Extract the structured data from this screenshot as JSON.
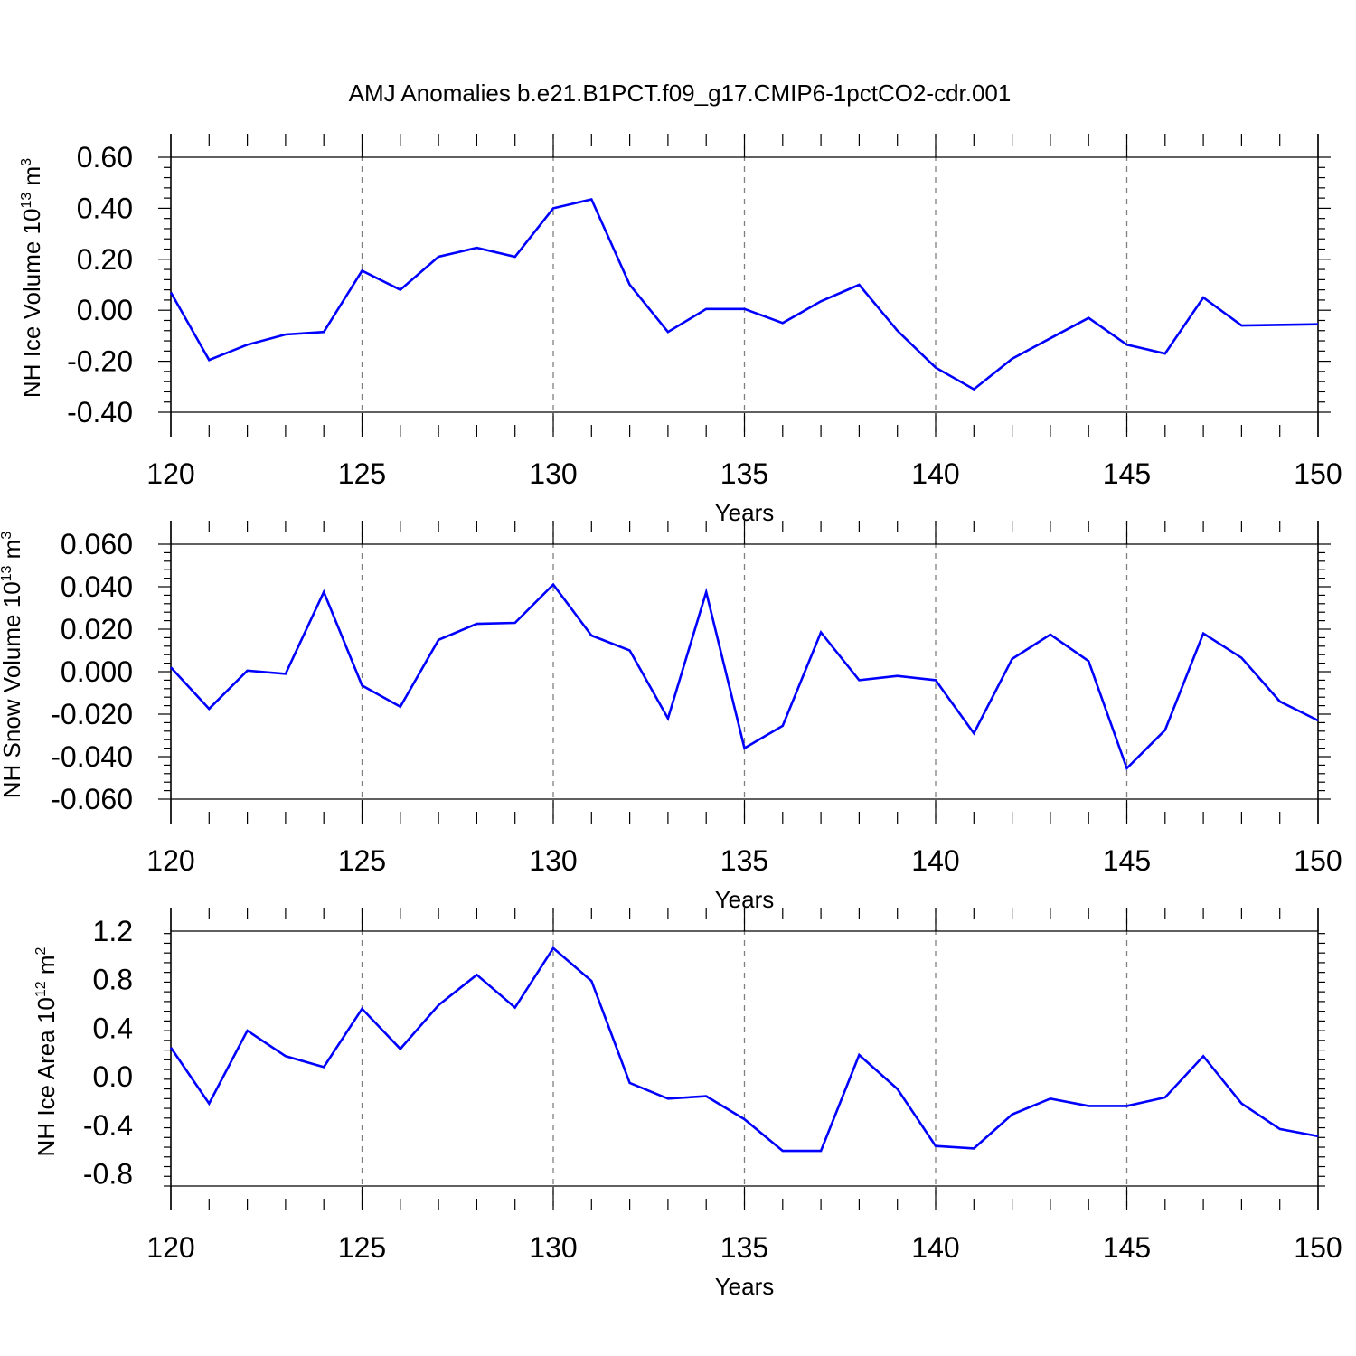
{
  "title": "AMJ Anomalies b.e21.B1PCT.f09_g17.CMIP6-1pctCO2-cdr.001",
  "colors": {
    "series": "#0000ff",
    "grid": "#808080",
    "axis": "#000000"
  },
  "chart_data": [
    {
      "type": "line",
      "ylabel": {
        "main": "NH Ice Volume 10",
        "sup": "13",
        "tail": " m",
        "sup2": "3"
      },
      "xlabel": "Years",
      "xlim": [
        120,
        150
      ],
      "ylim": [
        -0.4,
        0.6
      ],
      "xticks": [
        120,
        125,
        130,
        135,
        140,
        145,
        150
      ],
      "xtick_labels": [
        "120",
        "125",
        "130",
        "135",
        "140",
        "145",
        "150"
      ],
      "yticks": [
        -0.4,
        -0.2,
        0.0,
        0.2,
        0.4,
        0.6
      ],
      "ytick_labels": [
        "-0.40",
        "-0.20",
        "0.00",
        "0.20",
        "0.40",
        "0.60"
      ],
      "grid_x": [
        125,
        130,
        135,
        140,
        145
      ],
      "x": [
        120,
        121,
        122,
        123,
        124,
        125,
        126,
        127,
        128,
        129,
        130,
        131,
        132,
        133,
        134,
        135,
        136,
        137,
        138,
        139,
        140,
        141,
        142,
        143,
        144,
        145,
        146,
        147,
        148,
        150
      ],
      "values": [
        0.07,
        -0.195,
        -0.135,
        -0.095,
        -0.085,
        0.155,
        0.08,
        0.21,
        0.245,
        0.21,
        0.4,
        0.435,
        0.1,
        -0.085,
        0.005,
        0.005,
        -0.05,
        0.035,
        0.1,
        -0.08,
        -0.225,
        -0.31,
        -0.19,
        -0.11,
        -0.03,
        -0.135,
        -0.17,
        0.05,
        -0.06,
        -0.055
      ]
    },
    {
      "type": "line",
      "ylabel": {
        "main": "NH Snow Volume 10",
        "sup": "13",
        "tail": " m",
        "sup2": "3"
      },
      "xlabel": "Years",
      "xlim": [
        120,
        150
      ],
      "ylim": [
        -0.06,
        0.06
      ],
      "xticks": [
        120,
        125,
        130,
        135,
        140,
        145,
        150
      ],
      "xtick_labels": [
        "120",
        "125",
        "130",
        "135",
        "140",
        "145",
        "150"
      ],
      "yticks": [
        -0.06,
        -0.04,
        -0.02,
        0.0,
        0.02,
        0.04,
        0.06
      ],
      "ytick_labels": [
        "-0.060",
        "-0.040",
        "-0.020",
        "0.000",
        "0.020",
        "0.040",
        "0.060"
      ],
      "grid_x": [
        125,
        130,
        135,
        140,
        145
      ],
      "x": [
        120,
        121,
        122,
        123,
        124,
        125,
        126,
        127,
        128,
        129,
        130,
        131,
        132,
        133,
        134,
        135,
        136,
        137,
        138,
        139,
        140,
        141,
        142,
        143,
        144,
        145,
        146,
        147,
        148,
        149,
        150
      ],
      "values": [
        0.002,
        -0.0175,
        0.0005,
        -0.001,
        0.0375,
        -0.0065,
        -0.0165,
        0.015,
        0.0225,
        0.023,
        0.041,
        0.017,
        0.01,
        -0.022,
        0.0375,
        -0.036,
        -0.0255,
        0.0185,
        -0.004,
        -0.002,
        -0.004,
        -0.029,
        0.006,
        0.0175,
        0.005,
        -0.0455,
        -0.0275,
        0.018,
        0.0065,
        -0.014,
        -0.023
      ]
    },
    {
      "type": "line",
      "ylabel": {
        "main": "NH Ice Area 10",
        "sup": "12",
        "tail": " m",
        "sup2": "2"
      },
      "xlabel": "Years",
      "xlim": [
        120,
        150
      ],
      "ylim": [
        -0.9,
        1.2
      ],
      "xticks": [
        120,
        125,
        130,
        135,
        140,
        145,
        150
      ],
      "xtick_labels": [
        "120",
        "125",
        "130",
        "135",
        "140",
        "145",
        "150"
      ],
      "yticks": [
        -0.8,
        -0.4,
        0.0,
        0.4,
        0.8,
        1.2
      ],
      "ytick_labels": [
        "-0.8",
        "-0.4",
        "0.0",
        "0.4",
        "0.8",
        "1.2"
      ],
      "grid_x": [
        125,
        130,
        135,
        140,
        145
      ],
      "x": [
        120,
        121,
        122,
        123,
        124,
        125,
        126,
        127,
        128,
        129,
        130,
        131,
        132,
        133,
        134,
        135,
        136,
        137,
        138,
        139,
        140,
        141,
        142,
        143,
        144,
        145,
        146,
        147,
        148,
        149,
        150
      ],
      "values": [
        0.24,
        -0.22,
        0.38,
        0.17,
        0.08,
        0.56,
        0.23,
        0.59,
        0.84,
        0.57,
        1.06,
        0.79,
        -0.05,
        -0.18,
        -0.16,
        -0.35,
        -0.61,
        -0.61,
        0.18,
        -0.1,
        -0.57,
        -0.59,
        -0.31,
        -0.18,
        -0.24,
        -0.24,
        -0.17,
        0.17,
        -0.22,
        -0.43,
        -0.49
      ]
    }
  ]
}
